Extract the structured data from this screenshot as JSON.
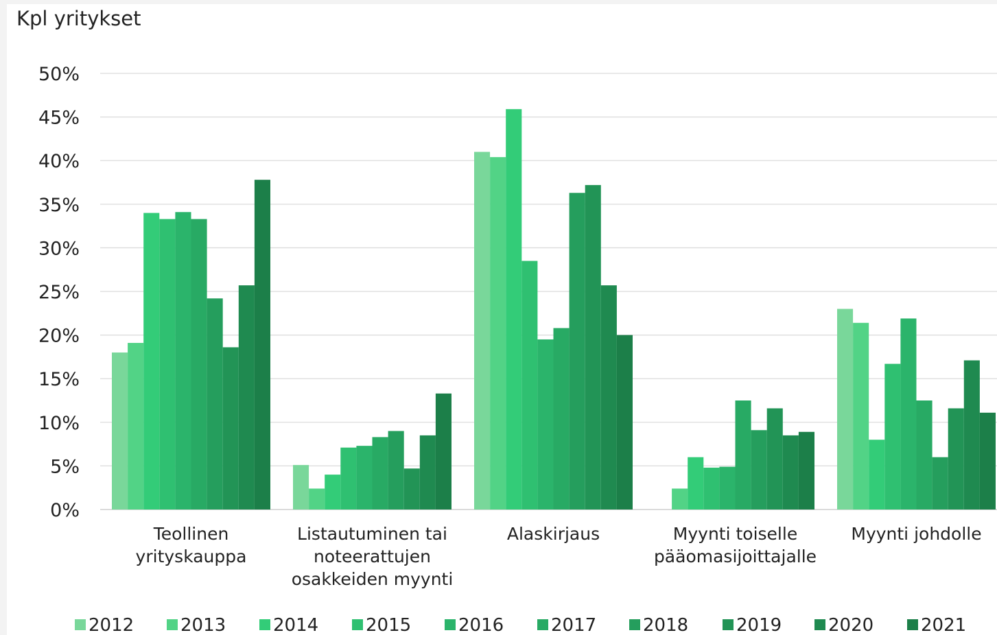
{
  "chart_data": {
    "type": "bar",
    "ylabel": "Kpl yritykset",
    "yticks": [
      "0%",
      "5%",
      "10%",
      "15%",
      "20%",
      "25%",
      "30%",
      "35%",
      "40%",
      "45%",
      "50%"
    ],
    "ylim": [
      0,
      50
    ],
    "grid": true,
    "legend_position": "bottom",
    "categories": [
      [
        "Teollinen",
        "yrityskauppa"
      ],
      [
        "Listautuminen tai",
        "noteerattujen",
        "osakkeiden myynti"
      ],
      [
        "Alaskirjaus"
      ],
      [
        "Myynti toiselle",
        "pääomasijoittajalle"
      ],
      [
        "Myynti johdolle"
      ]
    ],
    "series": [
      {
        "name": "2012",
        "color": "#79d79a",
        "values": [
          18.0,
          5.1,
          41.0,
          0.0,
          23.0
        ]
      },
      {
        "name": "2013",
        "color": "#52d386",
        "values": [
          19.1,
          2.4,
          40.4,
          2.4,
          21.4
        ]
      },
      {
        "name": "2014",
        "color": "#33cc78",
        "values": [
          34.0,
          4.0,
          45.9,
          6.0,
          8.0
        ]
      },
      {
        "name": "2015",
        "color": "#2fc071",
        "values": [
          33.3,
          7.1,
          28.5,
          4.8,
          16.7
        ]
      },
      {
        "name": "2016",
        "color": "#2bb46b",
        "values": [
          34.1,
          7.3,
          19.5,
          4.9,
          21.9
        ]
      },
      {
        "name": "2017",
        "color": "#28aa64",
        "values": [
          33.3,
          8.3,
          20.8,
          12.5,
          12.5
        ]
      },
      {
        "name": "2018",
        "color": "#259e5d",
        "values": [
          24.2,
          9.0,
          36.3,
          9.1,
          6.0
        ]
      },
      {
        "name": "2019",
        "color": "#229456",
        "values": [
          18.6,
          4.7,
          37.2,
          11.6,
          11.6
        ]
      },
      {
        "name": "2020",
        "color": "#1f8a50",
        "values": [
          25.7,
          8.5,
          25.7,
          8.5,
          17.1
        ]
      },
      {
        "name": "2021",
        "color": "#1c7f49",
        "values": [
          37.8,
          13.3,
          20.0,
          8.9,
          11.1
        ]
      }
    ]
  }
}
